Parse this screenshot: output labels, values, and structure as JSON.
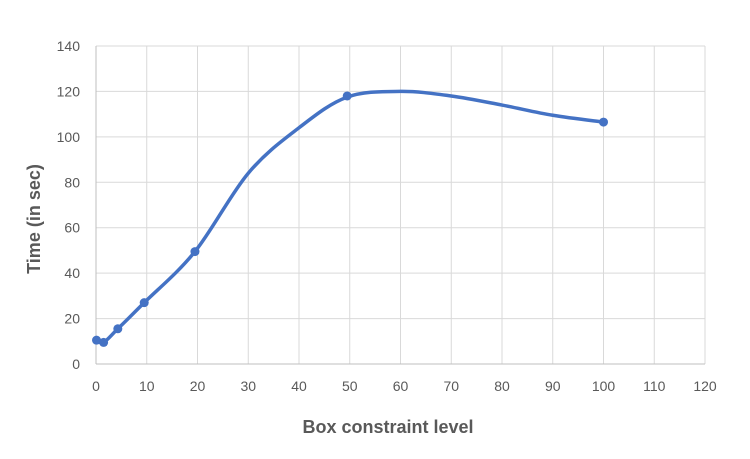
{
  "chart_data": {
    "type": "scatter",
    "title": "",
    "xlabel": "Box constraint level",
    "ylabel": "Time (in sec)",
    "xlim": [
      0,
      120
    ],
    "ylim": [
      0,
      140
    ],
    "x_ticks": [
      0,
      10,
      20,
      30,
      40,
      50,
      60,
      70,
      80,
      90,
      100,
      110,
      120
    ],
    "y_ticks": [
      0,
      20,
      40,
      60,
      80,
      100,
      120,
      140
    ],
    "grid": true,
    "legend": "none",
    "line_style": "smoothed",
    "series": [
      {
        "color": "#4472c4",
        "points": [
          {
            "x": 0.1,
            "y": 10.5
          },
          {
            "x": 1.5,
            "y": 9.5
          },
          {
            "x": 4.3,
            "y": 15.5
          },
          {
            "x": 9.5,
            "y": 27
          },
          {
            "x": 19.5,
            "y": 49.5
          },
          {
            "x": 49.5,
            "y": 118
          },
          {
            "x": 100,
            "y": 106.5
          }
        ],
        "curve": [
          {
            "x": 0.1,
            "y": 10.5
          },
          {
            "x": 1.5,
            "y": 9.5
          },
          {
            "x": 4.3,
            "y": 15.5
          },
          {
            "x": 9.5,
            "y": 27
          },
          {
            "x": 19.5,
            "y": 49.5
          },
          {
            "x": 30,
            "y": 84
          },
          {
            "x": 40,
            "y": 104
          },
          {
            "x": 49.5,
            "y": 117.5
          },
          {
            "x": 60,
            "y": 120
          },
          {
            "x": 70,
            "y": 118
          },
          {
            "x": 80,
            "y": 114
          },
          {
            "x": 90,
            "y": 109.5
          },
          {
            "x": 100,
            "y": 106.5
          }
        ]
      }
    ]
  }
}
